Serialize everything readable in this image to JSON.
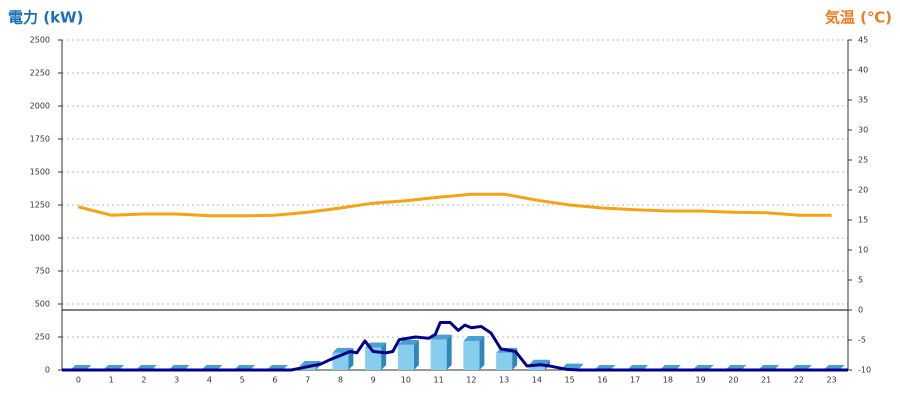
{
  "chart_data": {
    "type": "combo",
    "title": "電力 (kW)",
    "title_right": "気温 (℃)",
    "categories": [
      "0",
      "1",
      "2",
      "3",
      "4",
      "5",
      "6",
      "7",
      "8",
      "9",
      "10",
      "11",
      "12",
      "13",
      "14",
      "15",
      "16",
      "17",
      "18",
      "19",
      "20",
      "21",
      "22",
      "23"
    ],
    "xlim": [
      -0.5,
      23.5
    ],
    "ylim": [
      0,
      2500
    ],
    "yticks": [
      0,
      250,
      500,
      750,
      1000,
      1250,
      1500,
      1750,
      2000,
      2250,
      2500
    ],
    "y2lim": [
      -10,
      45
    ],
    "y2ticks": [
      -10,
      -5,
      0,
      5,
      10,
      15,
      20,
      25,
      30,
      35,
      40,
      45
    ],
    "grid": true,
    "series": [
      {
        "type": "bar",
        "color": "#87cdee",
        "values": [
          0,
          0,
          0,
          0,
          0,
          0,
          0,
          30,
          130,
          170,
          190,
          230,
          220,
          130,
          40,
          10,
          0,
          0,
          0,
          0,
          0,
          0,
          0,
          0
        ]
      },
      {
        "type": "line",
        "color": "#000088",
        "x": [
          -0.5,
          6.5,
          7.1,
          7.4,
          7.7,
          8.3,
          8.5,
          8.75,
          9.0,
          9.4,
          9.6,
          9.8,
          10.3,
          10.7,
          10.9,
          11.05,
          11.35,
          11.6,
          11.8,
          12.0,
          12.3,
          12.6,
          12.9,
          13.35,
          13.7,
          14.1,
          14.4,
          14.9,
          15.3,
          23.5
        ],
        "values": [
          0,
          0,
          30,
          45,
          80,
          140,
          130,
          220,
          140,
          130,
          140,
          230,
          250,
          240,
          270,
          360,
          360,
          300,
          340,
          320,
          330,
          280,
          160,
          140,
          30,
          40,
          30,
          5,
          0,
          0
        ]
      },
      {
        "type": "line",
        "color": "#f5a214",
        "axis": "y2",
        "values": [
          17.2,
          15.8,
          16,
          16,
          15.7,
          15.7,
          15.8,
          16.3,
          17,
          17.8,
          18.2,
          18.8,
          19.3,
          19.3,
          18.3,
          17.5,
          17,
          16.7,
          16.5,
          16.5,
          16.3,
          16.2,
          15.8,
          15.8
        ]
      }
    ]
  }
}
